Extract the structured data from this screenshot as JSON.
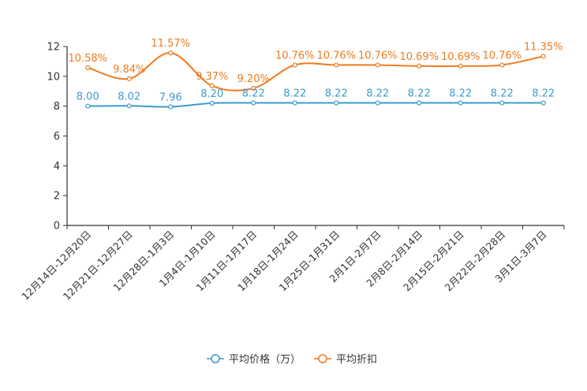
{
  "chart_data": {
    "type": "line",
    "categories": [
      "12月14日-12月20日",
      "12月21日-12月27日",
      "12月28日-1月3日",
      "1月4日-1月10日",
      "1月11日-1月17日",
      "1月18日-1月24日",
      "1月25日-1月31日",
      "2月1日-2月7日",
      "2月8日-2月14日",
      "2月15日-2月21日",
      "2月22日-2月28日",
      "3月1日-3月7日"
    ],
    "series": [
      {
        "name": "平均价格（万）",
        "color": "#3d9ccc",
        "values": [
          8.0,
          8.02,
          7.96,
          8.2,
          8.22,
          8.22,
          8.22,
          8.22,
          8.22,
          8.22,
          8.22,
          8.22
        ],
        "labels": [
          "8.00",
          "8.02",
          "7.96",
          "8.20",
          "8.22",
          "8.22",
          "8.22",
          "8.22",
          "8.22",
          "8.22",
          "8.22",
          "8.22"
        ]
      },
      {
        "name": "平均折扣",
        "color": "#f07a1c",
        "values": [
          10.58,
          9.84,
          11.57,
          9.37,
          9.2,
          10.76,
          10.76,
          10.76,
          10.69,
          10.69,
          10.76,
          11.35
        ],
        "labels": [
          "10.58%",
          "9.84%",
          "11.57%",
          "9.37%",
          "9.20%",
          "10.76%",
          "10.76%",
          "10.76%",
          "10.69%",
          "10.69%",
          "10.76%",
          "11.35%"
        ]
      }
    ],
    "yticks": [
      "0",
      "2",
      "4",
      "6",
      "8",
      "10",
      "12"
    ],
    "ylim": [
      0,
      12
    ],
    "legend": "bottom-center"
  }
}
